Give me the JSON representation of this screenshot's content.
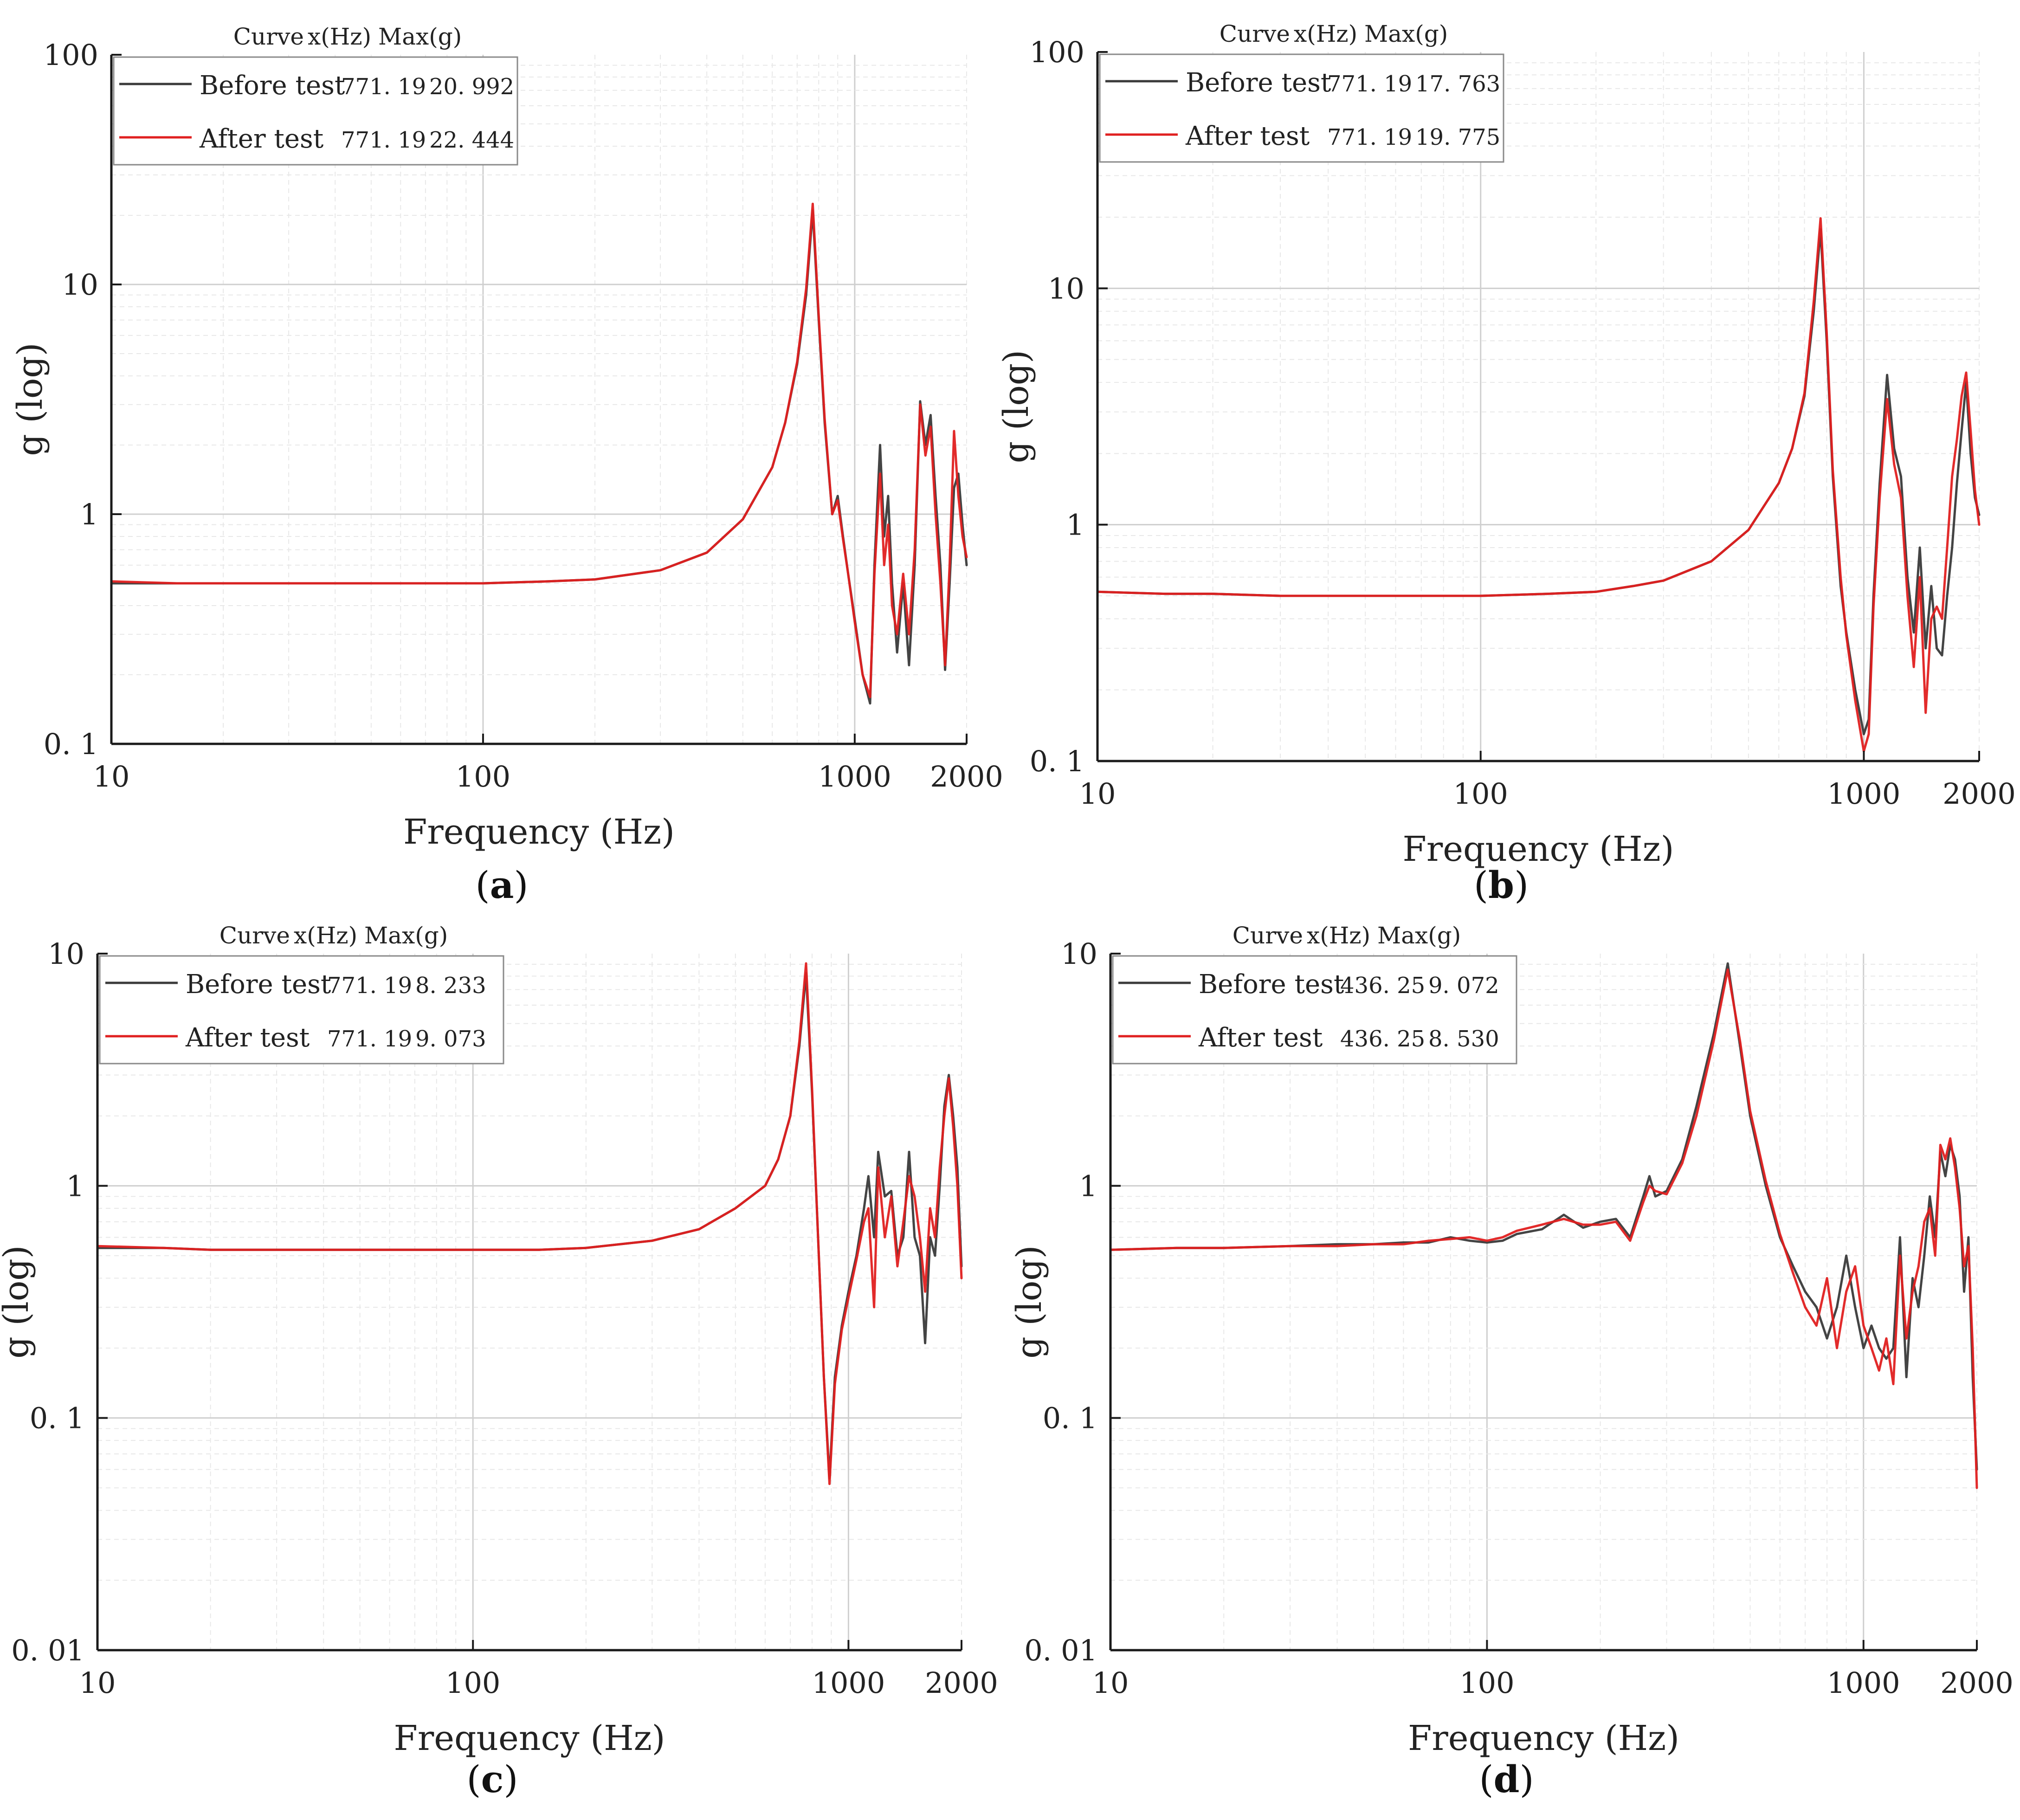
{
  "colors": {
    "before": "#3a3a3a",
    "after": "#e02020",
    "axis": "#1a1a1a",
    "major_grid": "#cfcfcf",
    "minor_grid": "#e8e8e8"
  },
  "chart_data": [
    {
      "panel": "a",
      "type": "line",
      "title": "",
      "panel_label": "a",
      "xlabel": "Frequency (Hz)",
      "ylabel": "g (log)",
      "xscale": "log",
      "yscale": "log",
      "xlim": [
        10,
        2000
      ],
      "ylim": [
        0.1,
        100
      ],
      "x_ticks": [
        10,
        100,
        1000,
        2000
      ],
      "x_tick_labels": [
        "10",
        "100",
        "1000",
        "2000"
      ],
      "y_ticks": [
        0.1,
        1,
        10,
        100
      ],
      "y_tick_labels": [
        "0. 1",
        "1",
        "10",
        "100"
      ],
      "grid": true,
      "legend_position": "top-left",
      "legend_header": {
        "curve": "Curve",
        "x": "x(Hz)",
        "max": "Max(g)"
      },
      "legend": [
        {
          "name": "Before test",
          "x_value": "771. 19",
          "max_value": "20. 992"
        },
        {
          "name": "After test",
          "x_value": "771. 19",
          "max_value": "22. 444"
        }
      ],
      "series": [
        {
          "name": "Before test",
          "x": [
            10,
            15,
            20,
            30,
            40,
            50,
            70,
            100,
            150,
            200,
            300,
            400,
            500,
            600,
            650,
            700,
            740,
            771,
            800,
            830,
            870,
            900,
            930,
            960,
            1000,
            1050,
            1100,
            1130,
            1170,
            1200,
            1230,
            1260,
            1300,
            1350,
            1400,
            1450,
            1500,
            1550,
            1600,
            1650,
            1700,
            1750,
            1800,
            1850,
            1900,
            1950,
            2000
          ],
          "y": [
            0.5,
            0.5,
            0.5,
            0.5,
            0.5,
            0.5,
            0.5,
            0.5,
            0.51,
            0.52,
            0.57,
            0.68,
            0.95,
            1.6,
            2.5,
            4.5,
            9.0,
            20.992,
            7.0,
            2.5,
            1.0,
            1.2,
            0.8,
            0.55,
            0.35,
            0.2,
            0.15,
            0.6,
            2.0,
            0.8,
            1.2,
            0.5,
            0.25,
            0.5,
            0.22,
            0.6,
            3.1,
            2.0,
            2.7,
            1.2,
            0.6,
            0.21,
            0.5,
            1.3,
            1.5,
            0.9,
            0.6
          ]
        },
        {
          "name": "After test",
          "x": [
            10,
            15,
            20,
            30,
            40,
            50,
            70,
            100,
            150,
            200,
            300,
            400,
            500,
            600,
            650,
            700,
            740,
            771,
            800,
            830,
            870,
            900,
            930,
            960,
            1000,
            1050,
            1100,
            1130,
            1170,
            1200,
            1230,
            1260,
            1300,
            1350,
            1400,
            1450,
            1500,
            1550,
            1600,
            1650,
            1700,
            1750,
            1800,
            1850,
            1900,
            1950,
            2000
          ],
          "y": [
            0.51,
            0.5,
            0.5,
            0.5,
            0.5,
            0.5,
            0.5,
            0.5,
            0.51,
            0.52,
            0.57,
            0.68,
            0.95,
            1.6,
            2.5,
            4.6,
            9.6,
            22.444,
            7.3,
            2.6,
            1.0,
            1.15,
            0.78,
            0.55,
            0.34,
            0.2,
            0.16,
            0.55,
            1.5,
            0.6,
            0.9,
            0.4,
            0.3,
            0.55,
            0.3,
            0.7,
            3.0,
            1.8,
            2.4,
            1.0,
            0.5,
            0.22,
            0.6,
            2.3,
            1.2,
            0.8,
            0.65
          ]
        }
      ]
    },
    {
      "panel": "b",
      "type": "line",
      "title": "",
      "panel_label": "b",
      "xlabel": "Frequency (Hz)",
      "ylabel": "g (log)",
      "xscale": "log",
      "yscale": "log",
      "xlim": [
        10,
        2000
      ],
      "ylim": [
        0.1,
        100
      ],
      "x_ticks": [
        10,
        100,
        1000,
        2000
      ],
      "x_tick_labels": [
        "10",
        "100",
        "1000",
        "2000"
      ],
      "y_ticks": [
        0.1,
        1,
        10,
        100
      ],
      "y_tick_labels": [
        "0. 1",
        "1",
        "10",
        "100"
      ],
      "grid": true,
      "legend_position": "top-left",
      "legend_header": {
        "curve": "Curve",
        "x": "x(Hz)",
        "max": "Max(g)"
      },
      "legend": [
        {
          "name": "Before test",
          "x_value": "771. 19",
          "max_value": "17. 763"
        },
        {
          "name": "After test",
          "x_value": "771. 19",
          "max_value": "19. 775"
        }
      ],
      "series": [
        {
          "name": "Before test",
          "x": [
            10,
            15,
            20,
            30,
            40,
            50,
            70,
            100,
            150,
            200,
            250,
            300,
            400,
            500,
            600,
            650,
            700,
            740,
            771,
            800,
            830,
            870,
            900,
            950,
            1000,
            1030,
            1060,
            1100,
            1150,
            1200,
            1250,
            1300,
            1350,
            1400,
            1450,
            1500,
            1550,
            1600,
            1650,
            1700,
            1750,
            1800,
            1850,
            1900,
            1950,
            2000
          ],
          "y": [
            0.52,
            0.51,
            0.51,
            0.5,
            0.5,
            0.5,
            0.5,
            0.5,
            0.51,
            0.52,
            0.55,
            0.58,
            0.7,
            0.95,
            1.5,
            2.1,
            3.5,
            8.0,
            17.763,
            6.0,
            1.6,
            0.55,
            0.35,
            0.2,
            0.13,
            0.15,
            0.5,
            1.5,
            4.3,
            2.1,
            1.6,
            0.6,
            0.35,
            0.8,
            0.3,
            0.55,
            0.3,
            0.28,
            0.5,
            0.8,
            1.5,
            2.5,
            4.0,
            2.0,
            1.3,
            1.1
          ]
        },
        {
          "name": "After test",
          "x": [
            10,
            15,
            20,
            30,
            40,
            50,
            70,
            100,
            150,
            200,
            250,
            300,
            400,
            500,
            600,
            650,
            700,
            740,
            771,
            800,
            830,
            870,
            900,
            950,
            1000,
            1030,
            1060,
            1100,
            1150,
            1200,
            1250,
            1300,
            1350,
            1400,
            1450,
            1500,
            1550,
            1600,
            1650,
            1700,
            1750,
            1800,
            1850,
            1900,
            1950,
            2000
          ],
          "y": [
            0.52,
            0.51,
            0.51,
            0.5,
            0.5,
            0.5,
            0.5,
            0.5,
            0.51,
            0.52,
            0.55,
            0.58,
            0.7,
            0.95,
            1.5,
            2.1,
            3.6,
            8.8,
            19.775,
            6.5,
            1.7,
            0.6,
            0.34,
            0.18,
            0.11,
            0.13,
            0.45,
            1.3,
            3.4,
            1.8,
            1.3,
            0.5,
            0.25,
            0.6,
            0.16,
            0.4,
            0.45,
            0.4,
            0.8,
            1.6,
            2.3,
            3.5,
            4.4,
            2.5,
            1.4,
            1.0
          ]
        }
      ]
    },
    {
      "panel": "c",
      "type": "line",
      "title": "",
      "panel_label": "c",
      "xlabel": "Frequency (Hz)",
      "ylabel": "g (log)",
      "xscale": "log",
      "yscale": "log",
      "xlim": [
        10,
        2000
      ],
      "ylim": [
        0.01,
        10
      ],
      "x_ticks": [
        10,
        100,
        1000,
        2000
      ],
      "x_tick_labels": [
        "10",
        "100",
        "1000",
        "2000"
      ],
      "y_ticks": [
        0.01,
        0.1,
        1,
        10
      ],
      "y_tick_labels": [
        "0. 01",
        "0. 1",
        "1",
        "10"
      ],
      "grid": true,
      "legend_position": "top-left",
      "legend_header": {
        "curve": "Curve",
        "x": "x(Hz)",
        "max": "Max(g)"
      },
      "legend": [
        {
          "name": "Before test",
          "x_value": "771. 19",
          "max_value": "8. 233"
        },
        {
          "name": "After test",
          "x_value": "771. 19",
          "max_value": "9. 073"
        }
      ],
      "series": [
        {
          "name": "Before test",
          "x": [
            10,
            15,
            20,
            30,
            40,
            50,
            70,
            100,
            150,
            200,
            300,
            400,
            500,
            600,
            650,
            700,
            740,
            771,
            800,
            830,
            860,
            890,
            920,
            960,
            1000,
            1050,
            1100,
            1130,
            1170,
            1200,
            1250,
            1300,
            1350,
            1400,
            1450,
            1500,
            1550,
            1600,
            1650,
            1700,
            1750,
            1800,
            1850,
            1900,
            1950,
            2000
          ],
          "y": [
            0.54,
            0.54,
            0.53,
            0.53,
            0.53,
            0.53,
            0.53,
            0.53,
            0.53,
            0.54,
            0.58,
            0.65,
            0.8,
            1.0,
            1.3,
            2.0,
            4.0,
            8.233,
            2.5,
            0.6,
            0.15,
            0.055,
            0.15,
            0.25,
            0.35,
            0.5,
            0.8,
            1.1,
            0.6,
            1.4,
            0.9,
            0.95,
            0.5,
            0.6,
            1.4,
            0.6,
            0.5,
            0.21,
            0.6,
            0.5,
            1.0,
            2.2,
            3.0,
            2.0,
            1.2,
            0.45
          ]
        },
        {
          "name": "After test",
          "x": [
            10,
            15,
            20,
            30,
            40,
            50,
            70,
            100,
            150,
            200,
            300,
            400,
            500,
            600,
            650,
            700,
            740,
            771,
            800,
            830,
            860,
            890,
            920,
            960,
            1000,
            1050,
            1100,
            1130,
            1170,
            1200,
            1250,
            1300,
            1350,
            1400,
            1450,
            1500,
            1550,
            1600,
            1650,
            1700,
            1750,
            1800,
            1850,
            1900,
            1950,
            2000
          ],
          "y": [
            0.55,
            0.54,
            0.53,
            0.53,
            0.53,
            0.53,
            0.53,
            0.53,
            0.53,
            0.54,
            0.58,
            0.65,
            0.8,
            1.0,
            1.3,
            2.0,
            4.2,
            9.073,
            2.6,
            0.6,
            0.15,
            0.052,
            0.14,
            0.24,
            0.33,
            0.48,
            0.7,
            0.8,
            0.3,
            1.2,
            0.6,
            0.9,
            0.45,
            0.7,
            1.1,
            0.9,
            0.6,
            0.35,
            0.8,
            0.6,
            1.2,
            2.0,
            2.9,
            1.8,
            1.0,
            0.4
          ]
        }
      ]
    },
    {
      "panel": "d",
      "type": "line",
      "title": "",
      "panel_label": "d",
      "xlabel": "Frequency (Hz)",
      "ylabel": "g (log)",
      "xscale": "log",
      "yscale": "log",
      "xlim": [
        10,
        2000
      ],
      "ylim": [
        0.01,
        10
      ],
      "x_ticks": [
        10,
        100,
        1000,
        2000
      ],
      "x_tick_labels": [
        "10",
        "100",
        "1000",
        "2000"
      ],
      "y_ticks": [
        0.01,
        0.1,
        1,
        10
      ],
      "y_tick_labels": [
        "0. 01",
        "0. 1",
        "1",
        "10"
      ],
      "grid": true,
      "legend_position": "top-left",
      "legend_header": {
        "curve": "Curve",
        "x": "x(Hz)",
        "max": "Max(g)"
      },
      "legend": [
        {
          "name": "Before test",
          "x_value": "436. 25",
          "max_value": "9. 072"
        },
        {
          "name": "After test",
          "x_value": "436. 25",
          "max_value": "8. 530"
        }
      ],
      "series": [
        {
          "name": "Before test",
          "x": [
            10,
            15,
            20,
            30,
            40,
            50,
            60,
            70,
            80,
            90,
            100,
            110,
            120,
            140,
            160,
            180,
            200,
            220,
            240,
            260,
            270,
            280,
            300,
            330,
            360,
            400,
            436,
            470,
            500,
            550,
            600,
            650,
            700,
            750,
            800,
            850,
            900,
            950,
            1000,
            1050,
            1100,
            1150,
            1200,
            1250,
            1300,
            1350,
            1400,
            1450,
            1500,
            1550,
            1600,
            1650,
            1700,
            1750,
            1800,
            1850,
            1900,
            1950,
            2000
          ],
          "y": [
            0.53,
            0.54,
            0.54,
            0.55,
            0.56,
            0.56,
            0.57,
            0.57,
            0.6,
            0.58,
            0.57,
            0.58,
            0.62,
            0.65,
            0.75,
            0.66,
            0.7,
            0.72,
            0.6,
            0.9,
            1.1,
            0.9,
            0.95,
            1.3,
            2.2,
            4.5,
            9.072,
            4.0,
            2.0,
            1.0,
            0.6,
            0.45,
            0.35,
            0.3,
            0.22,
            0.3,
            0.5,
            0.3,
            0.2,
            0.25,
            0.2,
            0.18,
            0.2,
            0.6,
            0.15,
            0.4,
            0.3,
            0.5,
            0.9,
            0.6,
            1.4,
            1.1,
            1.5,
            1.3,
            0.9,
            0.35,
            0.6,
            0.15,
            0.06
          ]
        },
        {
          "name": "After test",
          "x": [
            10,
            15,
            20,
            30,
            40,
            50,
            60,
            70,
            80,
            90,
            100,
            110,
            120,
            140,
            160,
            180,
            200,
            220,
            240,
            260,
            270,
            280,
            300,
            330,
            360,
            400,
            436,
            470,
            500,
            550,
            600,
            650,
            700,
            750,
            800,
            850,
            900,
            950,
            1000,
            1050,
            1100,
            1150,
            1200,
            1250,
            1300,
            1350,
            1400,
            1450,
            1500,
            1550,
            1600,
            1650,
            1700,
            1750,
            1800,
            1850,
            1900,
            1950,
            2000
          ],
          "y": [
            0.53,
            0.54,
            0.54,
            0.55,
            0.55,
            0.56,
            0.56,
            0.58,
            0.59,
            0.6,
            0.58,
            0.6,
            0.64,
            0.68,
            0.72,
            0.68,
            0.68,
            0.7,
            0.58,
            0.85,
            1.0,
            0.95,
            0.92,
            1.25,
            2.0,
            4.2,
            8.53,
            4.2,
            2.1,
            1.05,
            0.62,
            0.42,
            0.3,
            0.25,
            0.4,
            0.2,
            0.35,
            0.45,
            0.25,
            0.2,
            0.16,
            0.22,
            0.14,
            0.5,
            0.22,
            0.35,
            0.45,
            0.7,
            0.8,
            0.5,
            1.5,
            1.3,
            1.6,
            1.2,
            0.8,
            0.45,
            0.55,
            0.2,
            0.05
          ]
        }
      ]
    }
  ]
}
